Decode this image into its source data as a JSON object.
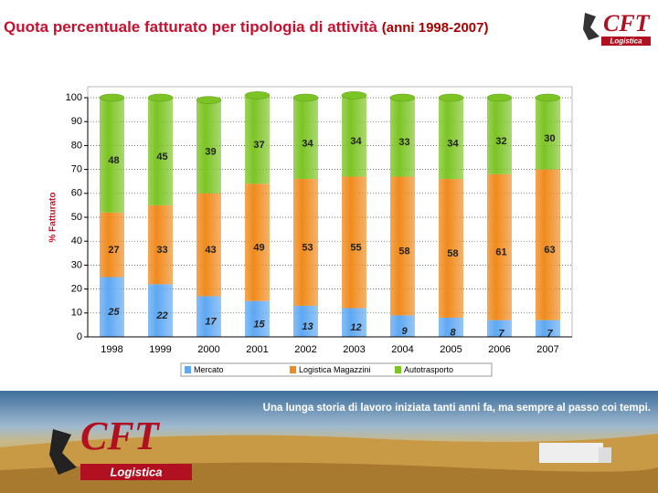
{
  "title": "Quota percentuale fatturato per tipologia di attività",
  "subtitle": "(anni 1998-2007)",
  "logo": {
    "mark": "CFT",
    "sub": "Logistica"
  },
  "banner": {
    "slogan": "Una lunga storia di lavoro iniziata tanti anni fa, ma sempre al passo coi tempi."
  },
  "chart_data": {
    "type": "bar",
    "stacked": true,
    "ylabel": "% Fatturato",
    "categories": [
      "1998",
      "1999",
      "2000",
      "2001",
      "2002",
      "2003",
      "2004",
      "2005",
      "2006",
      "2007"
    ],
    "series": [
      {
        "name": "Mercato",
        "color": "#5ea8f2",
        "values": [
          25,
          22,
          17,
          15,
          13,
          12,
          9,
          8,
          7,
          7
        ]
      },
      {
        "name": "Logistica Magazzini",
        "color": "#f08a1c",
        "values": [
          27,
          33,
          43,
          49,
          53,
          55,
          58,
          58,
          61,
          63
        ]
      },
      {
        "name": "Autotrasporto",
        "color": "#7cc424",
        "values": [
          48,
          45,
          39,
          37,
          34,
          34,
          33,
          34,
          32,
          30
        ]
      }
    ],
    "ylim": [
      0,
      100
    ],
    "yticks": [
      0,
      10,
      20,
      30,
      40,
      50,
      60,
      70,
      80,
      90,
      100
    ],
    "grid": true,
    "legend": "bottom"
  }
}
